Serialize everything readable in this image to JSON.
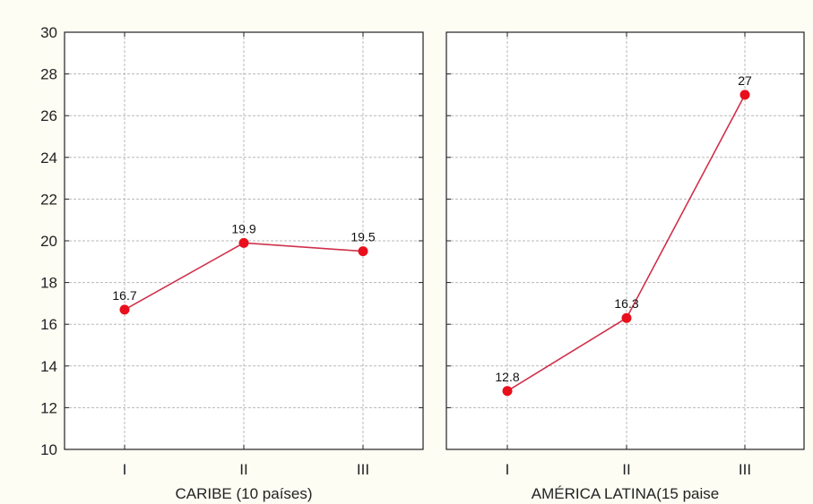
{
  "chart_data": {
    "type": "line",
    "ylim": [
      10,
      30
    ],
    "yticks": [
      10,
      12,
      14,
      16,
      18,
      20,
      22,
      24,
      26,
      28,
      30
    ],
    "grid": true,
    "colors": {
      "line": "#d0304a",
      "marker": "#e8101c"
    },
    "panels": [
      {
        "label": "CARIBE (10 países)",
        "categories": [
          "I",
          "II",
          "III"
        ],
        "values": [
          16.7,
          19.9,
          19.5
        ],
        "labels": [
          "16.7",
          "19.9",
          "19.5"
        ]
      },
      {
        "label": "AMÉRICA LATINA(15 paise",
        "categories": [
          "I",
          "II",
          "III"
        ],
        "values": [
          12.8,
          16.3,
          27
        ],
        "labels": [
          "12.8",
          "16.3",
          "27"
        ]
      }
    ]
  }
}
